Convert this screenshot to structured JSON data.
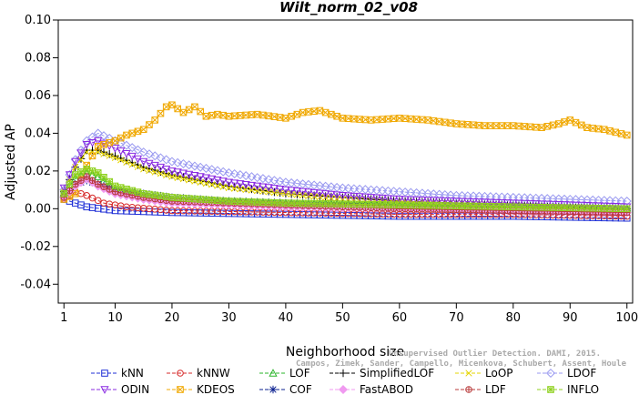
{
  "chart_data": {
    "type": "line",
    "title": "Wilt_norm_02_v08",
    "xlabel": "Neighborhood size",
    "ylabel": "Adjusted AP",
    "xlim": [
      0,
      101
    ],
    "ylim": [
      -0.05,
      0.1
    ],
    "xticks": [
      1,
      10,
      20,
      30,
      40,
      50,
      60,
      70,
      80,
      90,
      100
    ],
    "yticks": [
      -0.04,
      -0.02,
      0.0,
      0.02,
      0.04,
      0.06,
      0.08,
      0.1
    ],
    "ytick_labels": [
      "-0.04",
      "-0.02",
      "0.00",
      "0.02",
      "0.04",
      "0.06",
      "0.08",
      "0.10"
    ],
    "grid": false,
    "legend_position": "bottom",
    "series": [
      {
        "name": "kNN",
        "color": "#1f2fd6",
        "marker": "square",
        "points": [
          [
            1,
            0.005
          ],
          [
            3,
            0.003
          ],
          [
            5,
            0.001
          ],
          [
            10,
            -0.001
          ],
          [
            20,
            -0.002
          ],
          [
            40,
            -0.003
          ],
          [
            60,
            -0.004
          ],
          [
            80,
            -0.004
          ],
          [
            100,
            -0.005
          ]
        ]
      },
      {
        "name": "kNNW",
        "color": "#d62a2a",
        "marker": "circle",
        "points": [
          [
            1,
            0.005
          ],
          [
            3,
            0.009
          ],
          [
            5,
            0.007
          ],
          [
            8,
            0.003
          ],
          [
            12,
            0.001
          ],
          [
            20,
            -0.001
          ],
          [
            40,
            -0.002
          ],
          [
            60,
            -0.003
          ],
          [
            80,
            -0.003
          ],
          [
            100,
            -0.004
          ]
        ]
      },
      {
        "name": "LOF",
        "color": "#2ab52a",
        "marker": "triangle-up",
        "points": [
          [
            1,
            0.008
          ],
          [
            3,
            0.016
          ],
          [
            5,
            0.019
          ],
          [
            7,
            0.017
          ],
          [
            10,
            0.01
          ],
          [
            15,
            0.007
          ],
          [
            20,
            0.005
          ],
          [
            30,
            0.004
          ],
          [
            40,
            0.003
          ],
          [
            60,
            0.002
          ],
          [
            80,
            0.001
          ],
          [
            100,
            0.0
          ]
        ]
      },
      {
        "name": "SimplifiedLOF",
        "color": "#000000",
        "marker": "plus",
        "points": [
          [
            1,
            0.009
          ],
          [
            3,
            0.022
          ],
          [
            5,
            0.031
          ],
          [
            7,
            0.031
          ],
          [
            10,
            0.028
          ],
          [
            15,
            0.022
          ],
          [
            20,
            0.018
          ],
          [
            30,
            0.012
          ],
          [
            40,
            0.008
          ],
          [
            50,
            0.006
          ],
          [
            60,
            0.004
          ],
          [
            70,
            0.003
          ],
          [
            80,
            0.002
          ],
          [
            90,
            0.001
          ],
          [
            100,
            0.0
          ]
        ]
      },
      {
        "name": "LoOP",
        "color": "#e5d400",
        "marker": "x",
        "points": [
          [
            1,
            0.009
          ],
          [
            3,
            0.022
          ],
          [
            5,
            0.03
          ],
          [
            7,
            0.03
          ],
          [
            10,
            0.027
          ],
          [
            15,
            0.021
          ],
          [
            20,
            0.017
          ],
          [
            30,
            0.011
          ],
          [
            40,
            0.008
          ],
          [
            50,
            0.005
          ],
          [
            60,
            0.004
          ],
          [
            70,
            0.003
          ],
          [
            80,
            0.002
          ],
          [
            90,
            0.001
          ],
          [
            100,
            0.0
          ]
        ]
      },
      {
        "name": "LDOF",
        "color": "#9a9af0",
        "marker": "diamond",
        "points": [
          [
            1,
            0.01
          ],
          [
            3,
            0.026
          ],
          [
            5,
            0.036
          ],
          [
            7,
            0.04
          ],
          [
            10,
            0.036
          ],
          [
            15,
            0.03
          ],
          [
            20,
            0.025
          ],
          [
            30,
            0.019
          ],
          [
            40,
            0.014
          ],
          [
            50,
            0.011
          ],
          [
            60,
            0.009
          ],
          [
            70,
            0.007
          ],
          [
            80,
            0.006
          ],
          [
            90,
            0.005
          ],
          [
            100,
            0.004
          ]
        ]
      },
      {
        "name": "ODIN",
        "color": "#8a2be2",
        "marker": "triangle-down",
        "points": [
          [
            1,
            0.011
          ],
          [
            3,
            0.025
          ],
          [
            5,
            0.034
          ],
          [
            7,
            0.036
          ],
          [
            10,
            0.032
          ],
          [
            15,
            0.025
          ],
          [
            20,
            0.02
          ],
          [
            30,
            0.014
          ],
          [
            40,
            0.01
          ],
          [
            50,
            0.007
          ],
          [
            60,
            0.005
          ],
          [
            70,
            0.004
          ],
          [
            80,
            0.003
          ],
          [
            90,
            0.002
          ],
          [
            100,
            0.001
          ]
        ]
      },
      {
        "name": "KDEOS",
        "color": "#f0a800",
        "marker": "boxed-x",
        "points": [
          [
            1,
            0.005
          ],
          [
            3,
            0.008
          ],
          [
            5,
            0.023
          ],
          [
            7,
            0.033
          ],
          [
            10,
            0.036
          ],
          [
            12,
            0.039
          ],
          [
            15,
            0.042
          ],
          [
            17,
            0.047
          ],
          [
            19,
            0.054
          ],
          [
            20,
            0.055
          ],
          [
            22,
            0.051
          ],
          [
            24,
            0.054
          ],
          [
            26,
            0.049
          ],
          [
            28,
            0.05
          ],
          [
            30,
            0.049
          ],
          [
            35,
            0.05
          ],
          [
            40,
            0.048
          ],
          [
            43,
            0.051
          ],
          [
            46,
            0.052
          ],
          [
            50,
            0.048
          ],
          [
            55,
            0.047
          ],
          [
            60,
            0.048
          ],
          [
            65,
            0.047
          ],
          [
            70,
            0.045
          ],
          [
            75,
            0.044
          ],
          [
            80,
            0.044
          ],
          [
            85,
            0.043
          ],
          [
            88,
            0.045
          ],
          [
            90,
            0.047
          ],
          [
            93,
            0.043
          ],
          [
            96,
            0.042
          ],
          [
            100,
            0.039
          ]
        ]
      },
      {
        "name": "COF",
        "color": "#0a1f8f",
        "marker": "asterisk",
        "points": [
          [
            1,
            0.007
          ],
          [
            3,
            0.013
          ],
          [
            5,
            0.015
          ],
          [
            7,
            0.013
          ],
          [
            10,
            0.01
          ],
          [
            15,
            0.008
          ],
          [
            20,
            0.006
          ],
          [
            30,
            0.004
          ],
          [
            40,
            0.003
          ],
          [
            60,
            0.001
          ],
          [
            80,
            0.0
          ],
          [
            100,
            -0.001
          ]
        ]
      },
      {
        "name": "FastABOD",
        "color": "#f09af0",
        "marker": "diamond-filled",
        "points": [
          [
            1,
            0.006
          ],
          [
            3,
            0.012
          ],
          [
            5,
            0.016
          ],
          [
            7,
            0.012
          ],
          [
            10,
            0.008
          ],
          [
            15,
            0.005
          ],
          [
            20,
            0.003
          ],
          [
            40,
            0.001
          ],
          [
            60,
            0.0
          ],
          [
            80,
            -0.001
          ],
          [
            100,
            -0.002
          ]
        ]
      },
      {
        "name": "LDF",
        "color": "#b83a3a",
        "marker": "circle-plus",
        "points": [
          [
            1,
            0.006
          ],
          [
            3,
            0.013
          ],
          [
            5,
            0.017
          ],
          [
            7,
            0.013
          ],
          [
            10,
            0.009
          ],
          [
            15,
            0.006
          ],
          [
            20,
            0.004
          ],
          [
            40,
            0.002
          ],
          [
            60,
            0.0
          ],
          [
            80,
            -0.001
          ],
          [
            100,
            -0.002
          ]
        ]
      },
      {
        "name": "INFLO",
        "color": "#8fd11f",
        "marker": "star-box",
        "points": [
          [
            1,
            0.008
          ],
          [
            3,
            0.018
          ],
          [
            5,
            0.021
          ],
          [
            7,
            0.019
          ],
          [
            10,
            0.012
          ],
          [
            15,
            0.008
          ],
          [
            20,
            0.006
          ],
          [
            30,
            0.004
          ],
          [
            40,
            0.003
          ],
          [
            60,
            0.002
          ],
          [
            80,
            0.001
          ],
          [
            100,
            0.0
          ]
        ]
      }
    ]
  },
  "watermark": {
    "line1": "Unsupervised Outlier Detection. DAMI, 2015.",
    "line2": "Campos, Zimek, Sander, Campello, Micenkova, Schubert, Assent, Houle"
  }
}
